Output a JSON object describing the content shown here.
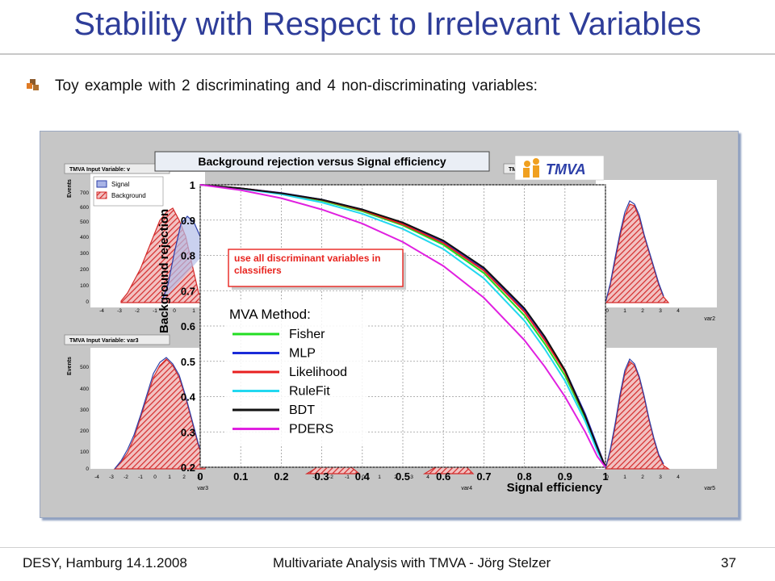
{
  "slide": {
    "title": "Stability with Respect to Irrelevant Variables",
    "bullet": "Toy example with 2 discriminating and 4 non-discriminating variables:"
  },
  "footer": {
    "left": "DESY, Hamburg 14.1.2008",
    "center": "Multivariate Analysis with TMVA - Jörg Stelzer",
    "page": "37"
  },
  "colors": {
    "title": "#2e3d99",
    "signal": "#2c3fa8",
    "background": "#d42a2a",
    "annotation": "#e8231e"
  },
  "logo": {
    "text": "TMVA"
  },
  "input_panels": {
    "var1_title": "TMVA Input Variable: v",
    "var3_title": "TMVA Input Variable: var3",
    "hidden_title": "TMVA",
    "y_label": "Events",
    "legend_signal": "Signal",
    "legend_background": "Background",
    "var2_label": "var2",
    "var3_label": "var3",
    "var4_label": "var4",
    "var5_label": "var5",
    "ticks_top_left_y": [
      "700",
      "600",
      "500",
      "400",
      "300",
      "200",
      "100",
      "0"
    ],
    "ticks_bottom_left_y": [
      "500",
      "400",
      "300",
      "200",
      "100",
      "0"
    ],
    "ticks_left_x": [
      "-4",
      "-3",
      "-2",
      "-1",
      "0",
      "1"
    ],
    "ticks_bottom_left_x": [
      "-4",
      "-3",
      "-2",
      "-1",
      "0",
      "1",
      "2",
      "3",
      "4"
    ],
    "ticks_right_x": [
      "0",
      "1",
      "2",
      "3",
      "4"
    ],
    "ticks_mid_x": [
      "-3",
      "-2",
      "-1",
      "0",
      "1",
      "2",
      "3",
      "4"
    ]
  },
  "annotation": "use all discriminant variables in classifiers",
  "legend": {
    "header": "MVA Method:",
    "entries": [
      {
        "name": "Fisher",
        "color": "#22dd22"
      },
      {
        "name": "MLP",
        "color": "#1a2bd8"
      },
      {
        "name": "Likelihood",
        "color": "#e82020"
      },
      {
        "name": "RuleFit",
        "color": "#22d8f0"
      },
      {
        "name": "BDT",
        "color": "#111111"
      },
      {
        "name": "PDERS",
        "color": "#e020e0"
      }
    ]
  },
  "chart_data": {
    "type": "line",
    "title": "Background rejection versus Signal efficiency",
    "xlabel": "Signal efficiency",
    "ylabel": "Background rejection",
    "xlim": [
      0,
      1
    ],
    "ylim": [
      0.2,
      1
    ],
    "grid": true,
    "x_ticks": [
      "0",
      "0.1",
      "0.2",
      "0.3",
      "0.4",
      "0.5",
      "0.6",
      "0.7",
      "0.8",
      "0.9",
      "1"
    ],
    "y_ticks": [
      "0.2",
      "0.3",
      "0.4",
      "0.5",
      "0.6",
      "0.7",
      "0.8",
      "0.9",
      "1"
    ],
    "legend_position": "left",
    "x": [
      0,
      0.1,
      0.2,
      0.3,
      0.4,
      0.5,
      0.6,
      0.7,
      0.8,
      0.85,
      0.9,
      0.95,
      0.98,
      1.0
    ],
    "series": [
      {
        "name": "Fisher",
        "color": "#22dd22",
        "values": [
          1.0,
          0.99,
          0.975,
          0.955,
          0.925,
          0.885,
          0.83,
          0.75,
          0.63,
          0.55,
          0.46,
          0.34,
          0.25,
          0.2
        ]
      },
      {
        "name": "MLP",
        "color": "#1a2bd8",
        "values": [
          1.0,
          0.99,
          0.977,
          0.958,
          0.93,
          0.89,
          0.838,
          0.76,
          0.645,
          0.565,
          0.475,
          0.35,
          0.26,
          0.2
        ]
      },
      {
        "name": "Likelihood",
        "color": "#e82020",
        "values": [
          1.0,
          0.99,
          0.976,
          0.957,
          0.928,
          0.888,
          0.835,
          0.757,
          0.64,
          0.56,
          0.47,
          0.345,
          0.255,
          0.2
        ]
      },
      {
        "name": "RuleFit",
        "color": "#22d8f0",
        "values": [
          1.0,
          0.989,
          0.973,
          0.95,
          0.918,
          0.875,
          0.818,
          0.735,
          0.615,
          0.535,
          0.445,
          0.33,
          0.245,
          0.2
        ]
      },
      {
        "name": "BDT",
        "color": "#111111",
        "values": [
          1.0,
          0.99,
          0.976,
          0.958,
          0.93,
          0.893,
          0.842,
          0.765,
          0.65,
          0.57,
          0.475,
          0.345,
          0.255,
          0.2
        ]
      },
      {
        "name": "PDERS",
        "color": "#e020e0",
        "values": [
          1.0,
          0.985,
          0.962,
          0.93,
          0.89,
          0.838,
          0.77,
          0.68,
          0.56,
          0.485,
          0.4,
          0.3,
          0.23,
          0.2
        ]
      }
    ]
  }
}
